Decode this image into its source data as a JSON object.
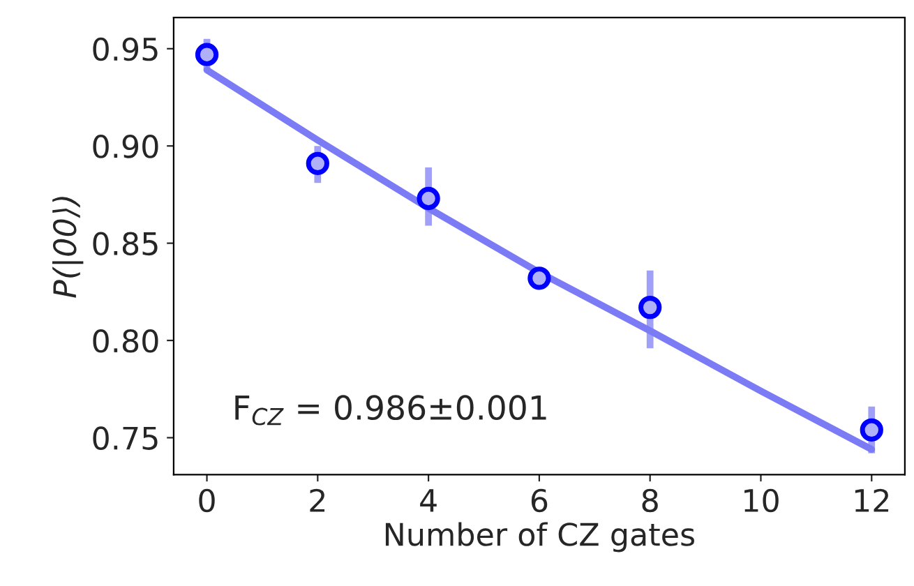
{
  "chart_data": {
    "type": "scatter",
    "xlabel": "Number of CZ gates",
    "ylabel": "P(|00⟩)",
    "annotations": [
      "F$_{CZ}$ = 0.986±0.001"
    ],
    "series": [
      {
        "type": "line",
        "color": "#7b7bf5",
        "x": [
          0,
          2,
          4,
          6,
          8,
          10,
          12
        ],
        "values": [
          0.939,
          0.903,
          0.868,
          0.835,
          0.805,
          0.774,
          0.744
        ]
      },
      {
        "color": "#0000ff",
        "x": [
          0,
          2,
          4,
          6,
          8,
          12
        ],
        "values": [
          0.947,
          0.891,
          0.873,
          0.832,
          0.817,
          0.754
        ],
        "errors": [
          [
            0.939,
            0.955
          ],
          [
            0.881,
            0.9
          ],
          [
            0.859,
            0.889
          ],
          [
            0.827,
            0.837
          ],
          [
            0.796,
            0.836
          ],
          [
            0.742,
            0.766
          ]
        ],
        "marker": "circle"
      }
    ],
    "xlim": [
      -0.6,
      12.6
    ],
    "ylim": [
      0.731,
      0.966
    ],
    "xticks": [
      0,
      2,
      4,
      6,
      8,
      10,
      12
    ],
    "yticks": [
      {
        "value": 0.75,
        "label": "0.75"
      },
      {
        "value": 0.8,
        "label": "0.80"
      },
      {
        "value": 0.85,
        "label": "0.85"
      },
      {
        "value": 0.9,
        "label": "0.90"
      },
      {
        "value": 0.95,
        "label": "0.95"
      }
    ],
    "grid": false
  }
}
